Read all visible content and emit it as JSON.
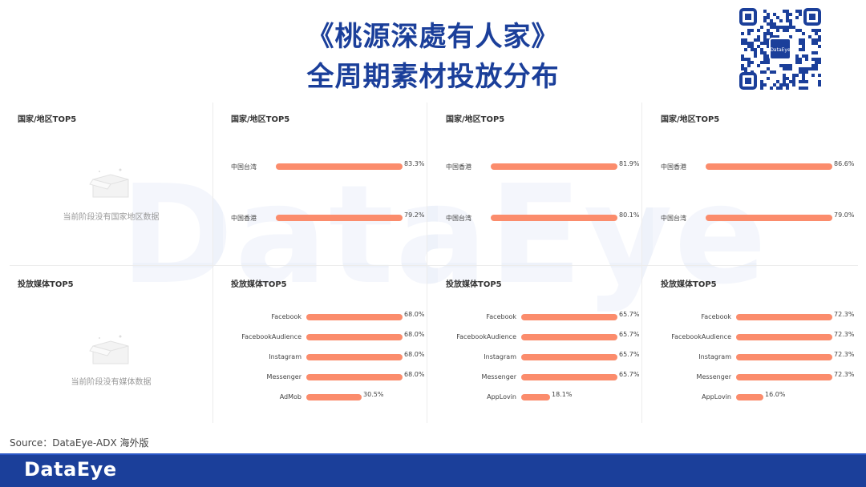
{
  "title_line1": "《桃源深處有人家》",
  "title_line2": "全周期素材投放分布",
  "watermark": "DataEye",
  "source": "Source：DataEye-ADX 海外版",
  "footer_logo": "DataEye",
  "qr_center_label": "DataEye",
  "colors": {
    "title": "#1b3f9a",
    "bar": "#fb8c6c",
    "footer": "#1b3f9a"
  },
  "empty_panels": {
    "region_title": "国家/地区TOP5",
    "region_empty": "当前阶段没有国家地区数据",
    "media_title": "投放媒体TOP5",
    "media_empty": "当前阶段没有媒体数据"
  },
  "chart_data": [
    {
      "type": "bar",
      "orientation": "horizontal",
      "title": "国家/地区TOP5",
      "categories": [
        "中国台湾",
        "中国香港"
      ],
      "values": [
        83.3,
        79.2
      ],
      "value_labels": [
        "83.3%",
        "79.2%"
      ],
      "xlim": [
        0,
        100
      ]
    },
    {
      "type": "bar",
      "orientation": "horizontal",
      "title": "国家/地区TOP5",
      "categories": [
        "中国香港",
        "中国台湾"
      ],
      "values": [
        81.9,
        80.1
      ],
      "value_labels": [
        "81.9%",
        "80.1%"
      ],
      "xlim": [
        0,
        100
      ]
    },
    {
      "type": "bar",
      "orientation": "horizontal",
      "title": "国家/地区TOP5",
      "categories": [
        "中国香港",
        "中国台湾"
      ],
      "values": [
        86.6,
        79.0
      ],
      "value_labels": [
        "86.6%",
        "79.0%"
      ],
      "xlim": [
        0,
        100
      ]
    },
    {
      "type": "bar",
      "orientation": "horizontal",
      "title": "投放媒体TOP5",
      "categories": [
        "Facebook",
        "FacebookAudience",
        "Instagram",
        "Messenger",
        "AdMob"
      ],
      "values": [
        68.0,
        68.0,
        68.0,
        68.0,
        30.5
      ],
      "value_labels": [
        "68.0%",
        "68.0%",
        "68.0%",
        "68.0%",
        "30.5%"
      ],
      "xlim": [
        0,
        100
      ]
    },
    {
      "type": "bar",
      "orientation": "horizontal",
      "title": "投放媒体TOP5",
      "categories": [
        "Facebook",
        "FacebookAudience",
        "Instagram",
        "Messenger",
        "AppLovin"
      ],
      "values": [
        65.7,
        65.7,
        65.7,
        65.7,
        18.1
      ],
      "value_labels": [
        "65.7%",
        "65.7%",
        "65.7%",
        "65.7%",
        "18.1%"
      ],
      "xlim": [
        0,
        100
      ]
    },
    {
      "type": "bar",
      "orientation": "horizontal",
      "title": "投放媒体TOP5",
      "categories": [
        "Facebook",
        "FacebookAudience",
        "Instagram",
        "Messenger",
        "AppLovin"
      ],
      "values": [
        72.3,
        72.3,
        72.3,
        72.3,
        16.0
      ],
      "value_labels": [
        "72.3%",
        "72.3%",
        "72.3%",
        "72.3%",
        "16.0%"
      ],
      "xlim": [
        0,
        100
      ]
    }
  ]
}
